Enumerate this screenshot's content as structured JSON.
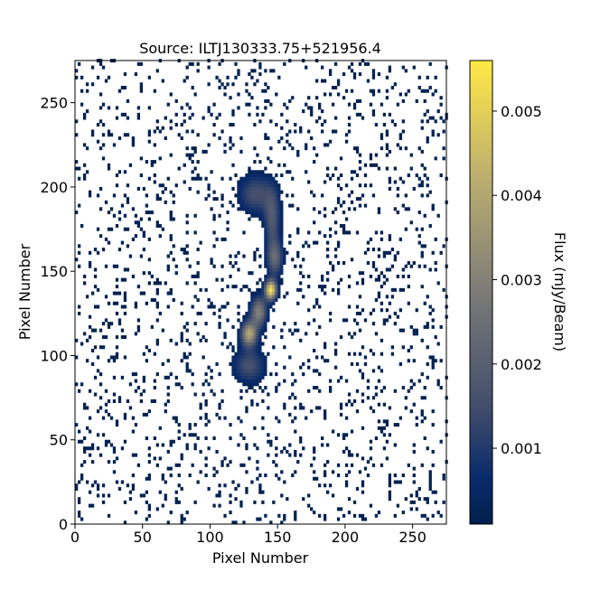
{
  "chart_data": {
    "type": "heatmap",
    "title": "Source: ILTJ130333.75+521956.4",
    "xlabel": "Pixel Number",
    "ylabel": "Pixel Number",
    "xlim": [
      0,
      275
    ],
    "ylim": [
      0,
      275
    ],
    "x_ticks": [
      0,
      50,
      100,
      150,
      200,
      250
    ],
    "y_ticks": [
      0,
      50,
      100,
      150,
      200,
      250
    ],
    "colorbar": {
      "label": "Flux (mJy/Beam)",
      "range": [
        0.0001,
        0.0056
      ],
      "ticks": [
        0.001,
        0.002,
        0.003,
        0.004,
        0.005
      ],
      "tick_labels": [
        "0.001",
        "0.002",
        "0.003",
        "0.004",
        "0.005"
      ],
      "colormap": "cividis"
    },
    "source_components": [
      {
        "x": 133,
        "y": 195,
        "sx": 9,
        "sy": 8,
        "peak": 0.0016
      },
      {
        "x": 145,
        "y": 180,
        "sx": 4,
        "sy": 12,
        "peak": 0.0018
      },
      {
        "x": 147,
        "y": 157,
        "sx": 4,
        "sy": 7,
        "peak": 0.0022
      },
      {
        "x": 144,
        "y": 138,
        "sx": 3,
        "sy": 4,
        "peak": 0.0054
      },
      {
        "x": 135,
        "y": 125,
        "sx": 4,
        "sy": 6,
        "peak": 0.003
      },
      {
        "x": 128,
        "y": 112,
        "sx": 4,
        "sy": 5,
        "peak": 0.004
      },
      {
        "x": 128,
        "y": 93,
        "sx": 8,
        "sy": 7,
        "peak": 0.0016
      }
    ],
    "background_level": 0.0002,
    "background_fraction": 0.1,
    "blanking": "values below threshold are shown blank (white)"
  }
}
